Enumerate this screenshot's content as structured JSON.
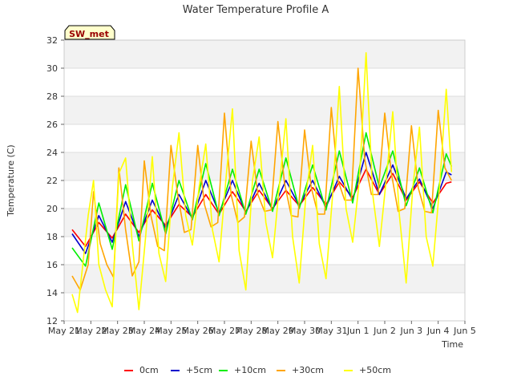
{
  "chart_data": {
    "type": "line",
    "title": "Water Temperature Profile A",
    "xlabel": "Time",
    "ylabel": "Temperature (C)",
    "site_label": "SW_met",
    "ylim": [
      12,
      32
    ],
    "xlim": [
      0,
      15
    ],
    "yticks": [
      12,
      14,
      16,
      18,
      20,
      22,
      24,
      26,
      28,
      30,
      32
    ],
    "xtick_labels": [
      "May 21",
      "May 22",
      "May 23",
      "May 24",
      "May 25",
      "May 26",
      "May 27",
      "May 28",
      "May 29",
      "May 30",
      "May 31",
      "Jun 1",
      "Jun 2",
      "Jun 3",
      "Jun 4",
      "Jun 5"
    ],
    "grid": true,
    "legend_position": "bottom",
    "series": [
      {
        "name": "0cm",
        "color": "#ff0000",
        "x": [
          0.3,
          0.8,
          1.3,
          1.8,
          2.3,
          2.8,
          3.3,
          3.8,
          4.3,
          4.8,
          5.3,
          5.8,
          6.3,
          6.8,
          7.3,
          7.8,
          8.3,
          8.8,
          9.3,
          9.8,
          10.3,
          10.8,
          11.3,
          11.8,
          12.3,
          12.8,
          13.3,
          13.8,
          14.3,
          14.5
        ],
        "values": [
          18.5,
          17.3,
          19.0,
          17.9,
          19.6,
          18.3,
          19.9,
          18.8,
          20.3,
          19.4,
          21.0,
          19.6,
          21.2,
          19.8,
          21.3,
          20.0,
          21.3,
          20.2,
          21.5,
          20.3,
          21.9,
          20.8,
          22.8,
          21.0,
          22.5,
          20.6,
          21.9,
          20.4,
          21.8,
          21.9
        ]
      },
      {
        "name": "+5cm",
        "color": "#0000cc",
        "x": [
          0.3,
          0.8,
          1.3,
          1.8,
          2.3,
          2.8,
          3.3,
          3.8,
          4.3,
          4.8,
          5.3,
          5.8,
          6.3,
          6.8,
          7.3,
          7.8,
          8.3,
          8.8,
          9.3,
          9.8,
          10.3,
          10.8,
          11.3,
          11.8,
          12.3,
          12.8,
          13.3,
          13.8,
          14.3,
          14.5
        ],
        "values": [
          18.2,
          16.8,
          19.5,
          17.6,
          20.5,
          18.0,
          20.6,
          18.6,
          21.0,
          19.3,
          22.0,
          19.7,
          22.0,
          19.7,
          21.8,
          19.9,
          22.0,
          20.2,
          22.0,
          20.1,
          22.3,
          20.6,
          24.0,
          21.0,
          23.1,
          20.7,
          22.1,
          20.0,
          22.6,
          22.4
        ]
      },
      {
        "name": "+10cm",
        "color": "#00ee00",
        "x": [
          0.3,
          0.8,
          1.3,
          1.8,
          2.3,
          2.8,
          3.3,
          3.8,
          4.3,
          4.8,
          5.3,
          5.8,
          6.3,
          6.8,
          7.3,
          7.8,
          8.3,
          8.8,
          9.3,
          9.8,
          10.3,
          10.8,
          11.3,
          11.8,
          12.3,
          12.8,
          13.3,
          13.8,
          14.3,
          14.5
        ],
        "values": [
          17.2,
          15.9,
          20.4,
          17.1,
          21.7,
          17.7,
          21.8,
          18.2,
          22.0,
          19.2,
          23.2,
          19.5,
          22.8,
          19.6,
          22.8,
          19.8,
          23.6,
          20.0,
          23.1,
          19.9,
          24.1,
          20.4,
          25.4,
          21.5,
          24.1,
          20.2,
          22.9,
          19.7,
          23.9,
          23.0
        ]
      },
      {
        "name": "+30cm",
        "color": "#ffa500",
        "x": [
          0.3,
          0.6,
          0.9,
          1.1,
          1.35,
          1.6,
          1.85,
          2.05,
          2.3,
          2.55,
          2.8,
          3.0,
          3.25,
          3.5,
          3.75,
          4.0,
          4.25,
          4.5,
          4.75,
          5.0,
          5.25,
          5.5,
          5.75,
          6.0,
          6.25,
          6.5,
          6.75,
          7.0,
          7.25,
          7.5,
          7.75,
          8.0,
          8.25,
          8.5,
          8.75,
          9.0,
          9.25,
          9.5,
          9.75,
          10.0,
          10.25,
          10.5,
          10.75,
          11.0,
          11.25,
          11.5,
          11.75,
          12.0,
          12.25,
          12.5,
          12.75,
          13.0,
          13.25,
          13.5,
          13.75,
          14.0,
          14.25,
          14.5
        ],
        "values": [
          15.2,
          14.2,
          16.0,
          21.2,
          17.5,
          16.0,
          15.1,
          22.9,
          18.5,
          15.2,
          16.2,
          23.4,
          19.5,
          17.3,
          17.0,
          24.5,
          21.0,
          18.3,
          18.5,
          24.5,
          20.3,
          18.7,
          19.0,
          26.8,
          21.0,
          19.0,
          19.4,
          24.8,
          21.0,
          19.8,
          19.9,
          26.2,
          21.8,
          19.5,
          19.4,
          25.6,
          21.5,
          19.6,
          19.6,
          27.2,
          22.0,
          20.6,
          20.6,
          30.0,
          23.5,
          21.0,
          21.0,
          26.8,
          22.5,
          19.8,
          20.0,
          25.9,
          21.5,
          19.8,
          19.7,
          27.0,
          22.9,
          22.0
        ]
      },
      {
        "name": "+50cm",
        "color": "#ffff00",
        "x": [
          0.3,
          0.5,
          0.7,
          0.9,
          1.1,
          1.3,
          1.55,
          1.8,
          2.05,
          2.3,
          2.55,
          2.8,
          3.05,
          3.3,
          3.55,
          3.8,
          4.05,
          4.3,
          4.55,
          4.8,
          5.05,
          5.3,
          5.55,
          5.8,
          6.05,
          6.3,
          6.55,
          6.8,
          7.05,
          7.3,
          7.55,
          7.8,
          8.05,
          8.3,
          8.55,
          8.8,
          9.05,
          9.3,
          9.55,
          9.8,
          10.05,
          10.3,
          10.55,
          10.8,
          11.05,
          11.3,
          11.55,
          11.8,
          12.05,
          12.3,
          12.55,
          12.8,
          13.05,
          13.3,
          13.55,
          13.8,
          14.05,
          14.3,
          14.5
        ],
        "values": [
          13.9,
          12.6,
          16.0,
          19.5,
          22.0,
          16.0,
          14.2,
          13.0,
          22.5,
          23.6,
          17.5,
          12.8,
          18.0,
          23.7,
          16.8,
          14.8,
          21.5,
          25.4,
          19.5,
          17.4,
          21.5,
          24.6,
          18.5,
          16.2,
          22.0,
          27.1,
          17.0,
          14.2,
          22.0,
          25.1,
          19.0,
          16.5,
          21.5,
          26.4,
          18.0,
          14.7,
          21.0,
          24.5,
          17.5,
          15.0,
          21.0,
          28.7,
          20.0,
          17.6,
          22.0,
          31.1,
          21.0,
          17.3,
          22.0,
          26.9,
          19.5,
          14.7,
          21.5,
          25.8,
          18.0,
          15.9,
          21.5,
          28.5,
          22.6
        ]
      }
    ]
  }
}
